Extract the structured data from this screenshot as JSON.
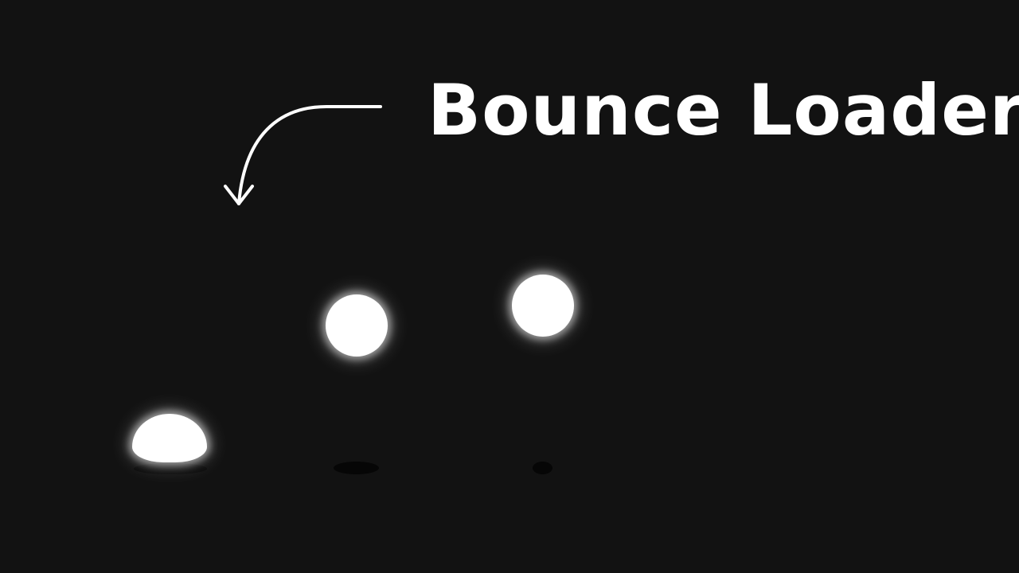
{
  "title": "Bounce Loader",
  "icons": {
    "arrow": "curved-arrow-icon"
  },
  "colors": {
    "background": "#121212",
    "ball": "#ffffff",
    "shadow": "#060606"
  },
  "loader": {
    "ball_count": 3
  }
}
